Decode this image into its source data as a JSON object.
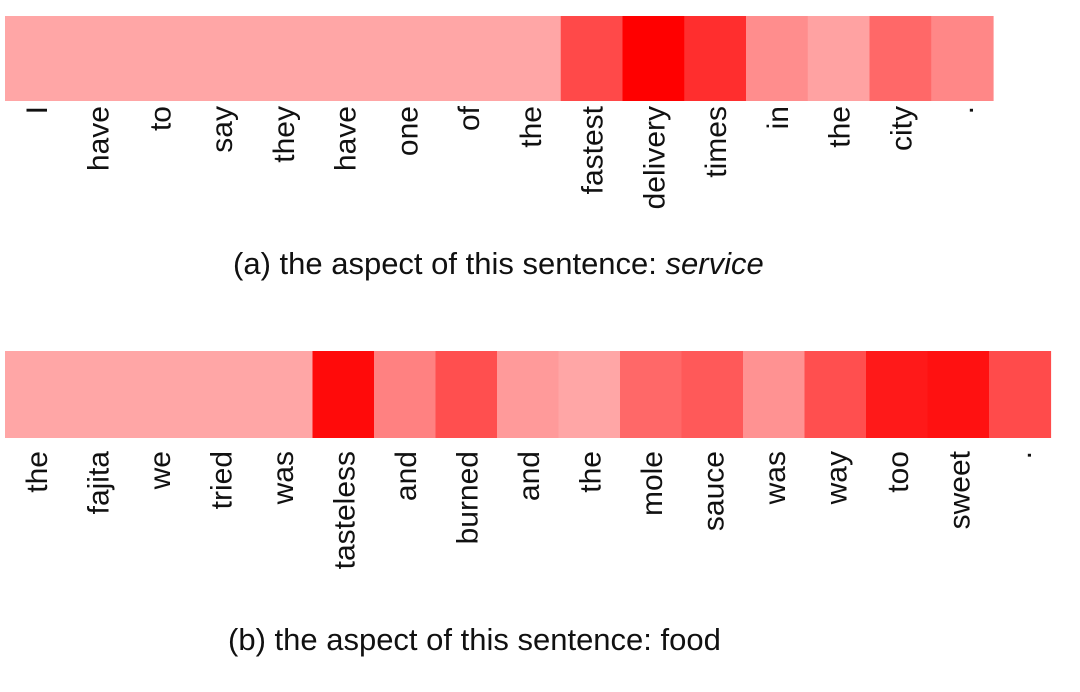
{
  "chart_data": [
    {
      "type": "heatmap",
      "tokens": [
        "I",
        "have",
        "to",
        "say",
        "they",
        "have",
        "one",
        "of",
        "the",
        "fastest",
        "delivery",
        "times",
        "in",
        "the",
        "city",
        "."
      ],
      "attention": [
        0.2,
        0.2,
        0.2,
        0.2,
        0.2,
        0.2,
        0.2,
        0.2,
        0.2,
        0.65,
        1.0,
        0.78,
        0.32,
        0.22,
        0.5,
        0.35
      ],
      "caption_prefix": "(a) the aspect of this sentence: ",
      "aspect": "service",
      "aspect_italic": true,
      "color_low": "#ffd0d0",
      "color_high": "#ff0000"
    },
    {
      "type": "heatmap",
      "tokens": [
        "the",
        "fajita",
        "we",
        "tried",
        "was",
        "tasteless",
        "and",
        "burned",
        "and",
        "the",
        "mole",
        "sauce",
        "was",
        "way",
        "too",
        "sweet",
        "."
      ],
      "attention": [
        0.2,
        0.2,
        0.2,
        0.2,
        0.2,
        0.95,
        0.38,
        0.62,
        0.26,
        0.2,
        0.5,
        0.57,
        0.3,
        0.62,
        0.88,
        0.92,
        0.64
      ],
      "caption_prefix": "(b) the aspect of this sentence: ",
      "aspect": "food",
      "aspect_italic": false,
      "color_low": "#ffd0d0",
      "color_high": "#ff0000"
    }
  ]
}
